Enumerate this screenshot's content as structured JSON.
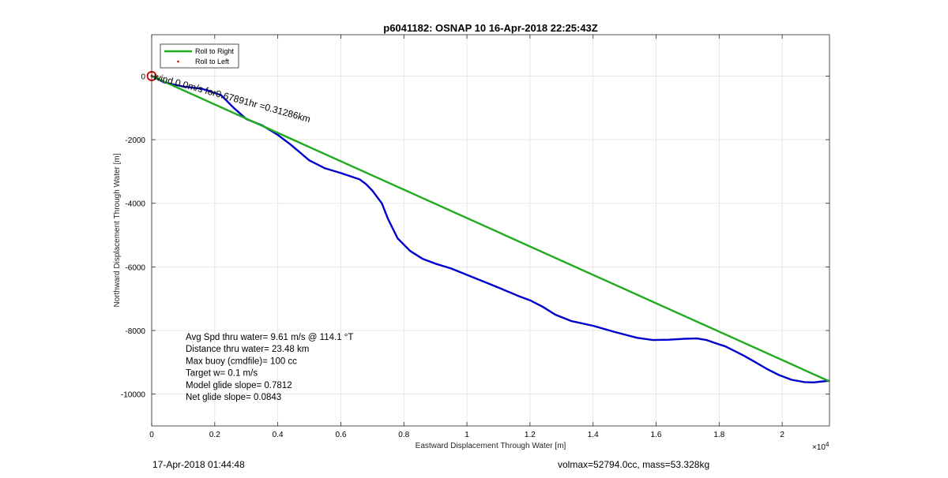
{
  "chart_data": {
    "type": "line",
    "title": "p6041182: OSNAP 10 16-Apr-2018 22:25:43Z",
    "xlabel": "Eastward Displacement Through Water [m]",
    "ylabel": "Northward Displacement Through Water [m]",
    "x_exponent_label": "×10",
    "x_exponent_power": "4",
    "xlim": [
      0,
      21500
    ],
    "ylim": [
      -11000,
      1300
    ],
    "grid": true,
    "xticks": [
      0,
      2000,
      4000,
      6000,
      8000,
      10000,
      12000,
      14000,
      16000,
      18000,
      20000
    ],
    "xtick_labels": [
      "0",
      "0.2",
      "0.4",
      "0.6",
      "0.8",
      "1",
      "1.2",
      "1.4",
      "1.6",
      "1.8",
      "2"
    ],
    "yticks": [
      -10000,
      -8000,
      -6000,
      -4000,
      -2000,
      0
    ],
    "ytick_labels": [
      "-10000",
      "-8000",
      "-6000",
      "-4000",
      "-2000",
      "0"
    ],
    "legend": {
      "placement": "top-left",
      "entries": [
        {
          "label": "Roll to Right",
          "color": "#1faa1f",
          "style": "line"
        },
        {
          "label": "Roll to Left",
          "color": "#cc0000",
          "style": "dot"
        }
      ]
    },
    "series": [
      {
        "color": "#0000cc",
        "x": [
          0,
          400,
          1000,
          1600,
          2200,
          2600,
          3000,
          3500,
          4000,
          4400,
          4700,
          5000,
          5500,
          6000,
          6300,
          6600,
          6800,
          7000,
          7300,
          7500,
          7800,
          8200,
          8600,
          9000,
          9500,
          10000,
          10500,
          11000,
          11600,
          12000,
          12400,
          12800,
          13300,
          14000,
          14700,
          15400,
          15900,
          16400,
          16900,
          17300,
          17600,
          17900,
          18200,
          18500,
          18800,
          19100,
          19500,
          19900,
          20300,
          20700,
          21000,
          21300,
          21500
        ],
        "y": [
          0,
          -200,
          -330,
          -400,
          -600,
          -1000,
          -1350,
          -1550,
          -1850,
          -2150,
          -2400,
          -2650,
          -2900,
          -3050,
          -3150,
          -3250,
          -3400,
          -3600,
          -4000,
          -4500,
          -5100,
          -5500,
          -5750,
          -5900,
          -6050,
          -6250,
          -6450,
          -6650,
          -6900,
          -7050,
          -7250,
          -7500,
          -7700,
          -7850,
          -8050,
          -8230,
          -8300,
          -8290,
          -8260,
          -8250,
          -8300,
          -8400,
          -8500,
          -8650,
          -8800,
          -8970,
          -9200,
          -9400,
          -9550,
          -9620,
          -9630,
          -9600,
          -9580
        ]
      },
      {
        "color": "#1faa1f",
        "x": [
          0,
          21500
        ],
        "y": [
          0,
          -9600
        ]
      }
    ],
    "start_marker": {
      "x": 0,
      "y": 0,
      "color": "#cc0000"
    },
    "annotation": "wind 0.0m/s for0.67891hr =0.31286km",
    "stats": [
      "Avg Spd thru water=  9.61 m/s @ 114.1 °T",
      "Distance thru water= 23.48 km",
      "Max buoy (cmdfile)= 100 cc",
      "Target w= 0.1 m/s",
      "Model glide slope= 0.7812",
      "Net glide slope= 0.0843"
    ]
  },
  "footer": {
    "left": "17-Apr-2018 01:44:48",
    "right": "volmax=52794.0cc, mass=53.328kg"
  }
}
